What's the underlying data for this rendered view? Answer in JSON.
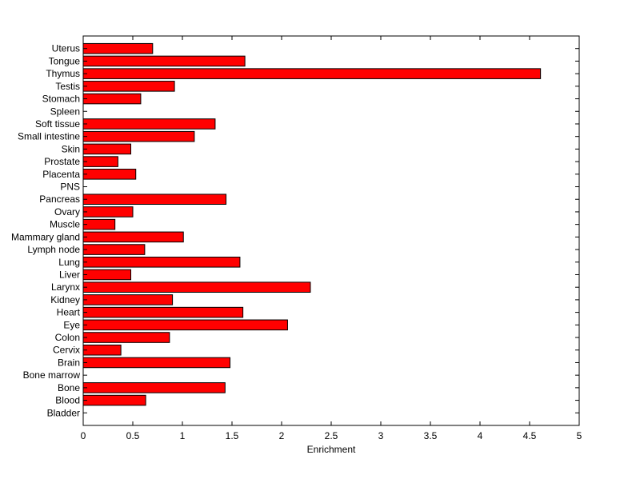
{
  "chart_data": {
    "type": "bar",
    "orientation": "horizontal",
    "title": "",
    "xlabel": "Enrichment",
    "ylabel": "",
    "xlim": [
      0,
      5
    ],
    "xticks": [
      "0",
      "0.5",
      "1",
      "1.5",
      "2",
      "2.5",
      "3",
      "3.5",
      "4",
      "4.5",
      "5"
    ],
    "grid": false,
    "bar_color": "#ff0000",
    "categories": [
      "Bladder",
      "Blood",
      "Bone",
      "Bone marrow",
      "Brain",
      "Cervix",
      "Colon",
      "Eye",
      "Heart",
      "Kidney",
      "Larynx",
      "Liver",
      "Lung",
      "Lymph node",
      "Mammary gland",
      "Muscle",
      "Ovary",
      "Pancreas",
      "PNS",
      "Placenta",
      "Prostate",
      "Skin",
      "Small intestine",
      "Soft tissue",
      "Spleen",
      "Stomach",
      "Testis",
      "Thymus",
      "Tongue",
      "Uterus"
    ],
    "values": [
      0,
      0.63,
      1.43,
      0,
      1.48,
      0.38,
      0.87,
      2.06,
      1.61,
      0.9,
      2.29,
      0.48,
      1.58,
      0.62,
      1.01,
      0.32,
      0.5,
      1.44,
      0,
      0.53,
      0.35,
      0.48,
      1.12,
      1.33,
      0,
      0.58,
      0.92,
      4.61,
      1.63,
      0.7
    ]
  }
}
